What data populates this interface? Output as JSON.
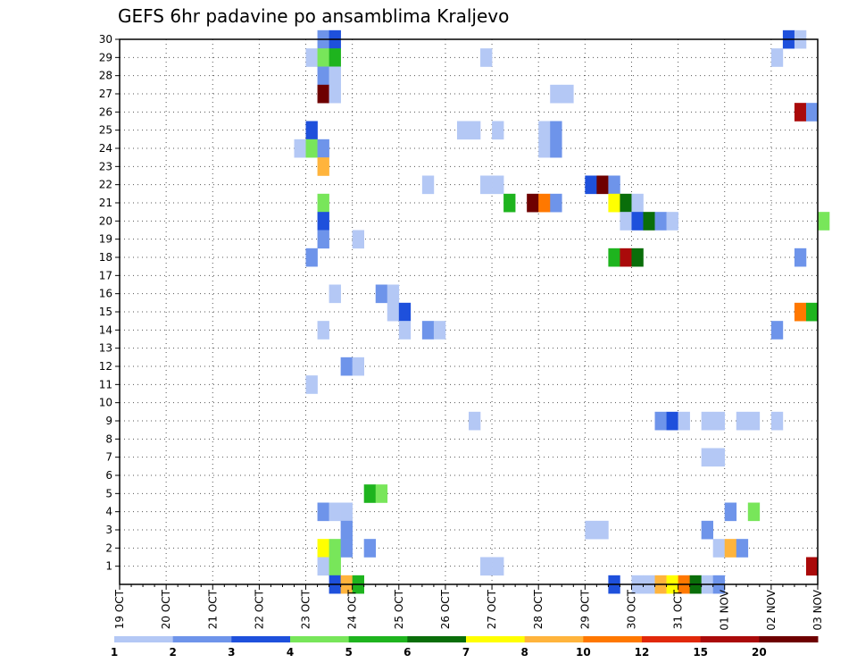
{
  "chart_data": {
    "type": "heatmap",
    "title": "GEFS 6hr padavine po ansamblima Kraljevo",
    "xlabel": "",
    "ylabel": "",
    "x_tick_labels": [
      "19 OCT",
      "20 OCT",
      "21 OCT",
      "22 OCT",
      "23 OCT",
      "24 OCT",
      "25 OCT",
      "26 OCT",
      "27 OCT",
      "28 OCT",
      "29 OCT",
      "30 OCT",
      "31 OCT",
      "01 NOV",
      "02 NOV",
      "03 NOV"
    ],
    "y_tick_labels": [
      "1",
      "2",
      "3",
      "4",
      "5",
      "6",
      "7",
      "8",
      "9",
      "10",
      "11",
      "12",
      "13",
      "14",
      "15",
      "16",
      "17",
      "18",
      "19",
      "20",
      "21",
      "22",
      "23",
      "24",
      "25",
      "26",
      "27",
      "28",
      "29",
      "30"
    ],
    "ylim": [
      0,
      30
    ],
    "time_steps_per_day": 4,
    "grid": true,
    "colorbar": {
      "labels": [
        "1",
        "2",
        "3",
        "4",
        "5",
        "6",
        "7",
        "8",
        "10",
        "12",
        "15",
        "20"
      ],
      "colors": [
        "#b4c8f5",
        "#6e94ea",
        "#1e50dc",
        "#78e65a",
        "#1eb41e",
        "#0a6e0a",
        "#ffff00",
        "#ffb43c",
        "#ff7800",
        "#e1280a",
        "#aa0a0a",
        "#6e0000"
      ]
    },
    "cells": [
      {
        "m": 30,
        "t": 17,
        "c": 1
      },
      {
        "m": 30,
        "t": 18,
        "c": 2
      },
      {
        "m": 30,
        "t": 57,
        "c": 2
      },
      {
        "m": 30,
        "t": 58,
        "c": 0
      },
      {
        "m": 29,
        "t": 16,
        "c": 0
      },
      {
        "m": 29,
        "t": 17,
        "c": 3
      },
      {
        "m": 29,
        "t": 18,
        "c": 4
      },
      {
        "m": 29,
        "t": 31,
        "c": 0
      },
      {
        "m": 29,
        "t": 56,
        "c": 0
      },
      {
        "m": 28,
        "t": 17,
        "c": 1
      },
      {
        "m": 28,
        "t": 18,
        "c": 0
      },
      {
        "m": 27,
        "t": 17,
        "c": 11
      },
      {
        "m": 27,
        "t": 18,
        "c": 0
      },
      {
        "m": 27,
        "t": 37,
        "c": 0
      },
      {
        "m": 27,
        "t": 38,
        "c": 0
      },
      {
        "m": 26,
        "t": 58,
        "c": 10
      },
      {
        "m": 26,
        "t": 59,
        "c": 1
      },
      {
        "m": 25,
        "t": 16,
        "c": 2
      },
      {
        "m": 25,
        "t": 29,
        "c": 0
      },
      {
        "m": 25,
        "t": 30,
        "c": 0
      },
      {
        "m": 25,
        "t": 32,
        "c": 0
      },
      {
        "m": 25,
        "t": 36,
        "c": 0
      },
      {
        "m": 25,
        "t": 37,
        "c": 1
      },
      {
        "m": 24,
        "t": 15,
        "c": 0
      },
      {
        "m": 24,
        "t": 16,
        "c": 3
      },
      {
        "m": 24,
        "t": 17,
        "c": 1
      },
      {
        "m": 24,
        "t": 36,
        "c": 0
      },
      {
        "m": 24,
        "t": 37,
        "c": 1
      },
      {
        "m": 23,
        "t": 17,
        "c": 7
      },
      {
        "m": 22,
        "t": 26,
        "c": 0
      },
      {
        "m": 22,
        "t": 31,
        "c": 0
      },
      {
        "m": 22,
        "t": 32,
        "c": 0
      },
      {
        "m": 22,
        "t": 40,
        "c": 2
      },
      {
        "m": 22,
        "t": 41,
        "c": 11
      },
      {
        "m": 22,
        "t": 42,
        "c": 1
      },
      {
        "m": 21,
        "t": 17,
        "c": 3
      },
      {
        "m": 21,
        "t": 33,
        "c": 4
      },
      {
        "m": 21,
        "t": 35,
        "c": 11
      },
      {
        "m": 21,
        "t": 36,
        "c": 8
      },
      {
        "m": 21,
        "t": 37,
        "c": 1
      },
      {
        "m": 21,
        "t": 42,
        "c": 6
      },
      {
        "m": 21,
        "t": 43,
        "c": 5
      },
      {
        "m": 21,
        "t": 44,
        "c": 0
      },
      {
        "m": 20,
        "t": 17,
        "c": 2
      },
      {
        "m": 20,
        "t": 43,
        "c": 0
      },
      {
        "m": 20,
        "t": 44,
        "c": 2
      },
      {
        "m": 20,
        "t": 45,
        "c": 5
      },
      {
        "m": 20,
        "t": 46,
        "c": 1
      },
      {
        "m": 20,
        "t": 47,
        "c": 0
      },
      {
        "m": 20,
        "t": 60,
        "c": 3
      },
      {
        "m": 19,
        "t": 17,
        "c": 1
      },
      {
        "m": 19,
        "t": 20,
        "c": 0
      },
      {
        "m": 18,
        "t": 16,
        "c": 1
      },
      {
        "m": 18,
        "t": 42,
        "c": 4
      },
      {
        "m": 18,
        "t": 43,
        "c": 10
      },
      {
        "m": 18,
        "t": 44,
        "c": 5
      },
      {
        "m": 18,
        "t": 58,
        "c": 1
      },
      {
        "m": 16,
        "t": 18,
        "c": 0
      },
      {
        "m": 16,
        "t": 22,
        "c": 1
      },
      {
        "m": 16,
        "t": 23,
        "c": 0
      },
      {
        "m": 15,
        "t": 23,
        "c": 0
      },
      {
        "m": 15,
        "t": 24,
        "c": 2
      },
      {
        "m": 15,
        "t": 58,
        "c": 8
      },
      {
        "m": 15,
        "t": 59,
        "c": 4
      },
      {
        "m": 14,
        "t": 17,
        "c": 0
      },
      {
        "m": 14,
        "t": 24,
        "c": 0
      },
      {
        "m": 14,
        "t": 26,
        "c": 1
      },
      {
        "m": 14,
        "t": 27,
        "c": 0
      },
      {
        "m": 14,
        "t": 56,
        "c": 1
      },
      {
        "m": 12,
        "t": 19,
        "c": 1
      },
      {
        "m": 12,
        "t": 20,
        "c": 0
      },
      {
        "m": 11,
        "t": 16,
        "c": 0
      },
      {
        "m": 9,
        "t": 30,
        "c": 0
      },
      {
        "m": 9,
        "t": 46,
        "c": 1
      },
      {
        "m": 9,
        "t": 47,
        "c": 2
      },
      {
        "m": 9,
        "t": 48,
        "c": 0
      },
      {
        "m": 9,
        "t": 50,
        "c": 0
      },
      {
        "m": 9,
        "t": 51,
        "c": 0
      },
      {
        "m": 9,
        "t": 53,
        "c": 0
      },
      {
        "m": 9,
        "t": 54,
        "c": 0
      },
      {
        "m": 9,
        "t": 56,
        "c": 0
      },
      {
        "m": 7,
        "t": 50,
        "c": 0
      },
      {
        "m": 7,
        "t": 51,
        "c": 0
      },
      {
        "m": 5,
        "t": 21,
        "c": 4
      },
      {
        "m": 5,
        "t": 22,
        "c": 3
      },
      {
        "m": 4,
        "t": 17,
        "c": 1
      },
      {
        "m": 4,
        "t": 18,
        "c": 0
      },
      {
        "m": 4,
        "t": 19,
        "c": 0
      },
      {
        "m": 4,
        "t": 52,
        "c": 1
      },
      {
        "m": 4,
        "t": 54,
        "c": 3
      },
      {
        "m": 3,
        "t": 19,
        "c": 1
      },
      {
        "m": 3,
        "t": 40,
        "c": 0
      },
      {
        "m": 3,
        "t": 41,
        "c": 0
      },
      {
        "m": 3,
        "t": 50,
        "c": 1
      },
      {
        "m": 2,
        "t": 17,
        "c": 6
      },
      {
        "m": 2,
        "t": 18,
        "c": 3
      },
      {
        "m": 2,
        "t": 19,
        "c": 1
      },
      {
        "m": 2,
        "t": 21,
        "c": 1
      },
      {
        "m": 2,
        "t": 51,
        "c": 0
      },
      {
        "m": 2,
        "t": 52,
        "c": 7
      },
      {
        "m": 2,
        "t": 53,
        "c": 1
      },
      {
        "m": 1,
        "t": 17,
        "c": 0
      },
      {
        "m": 1,
        "t": 18,
        "c": 3
      },
      {
        "m": 1,
        "t": 31,
        "c": 0
      },
      {
        "m": 1,
        "t": 32,
        "c": 0
      },
      {
        "m": 1,
        "t": 59,
        "c": 10
      },
      {
        "m": 0,
        "t": 18,
        "c": 2
      },
      {
        "m": 0,
        "t": 19,
        "c": 7
      },
      {
        "m": 0,
        "t": 20,
        "c": 4
      },
      {
        "m": 0,
        "t": 42,
        "c": 2
      },
      {
        "m": 0,
        "t": 44,
        "c": 0
      },
      {
        "m": 0,
        "t": 45,
        "c": 0
      },
      {
        "m": 0,
        "t": 46,
        "c": 7
      },
      {
        "m": 0,
        "t": 47,
        "c": 6
      },
      {
        "m": 0,
        "t": 48,
        "c": 8
      },
      {
        "m": 0,
        "t": 49,
        "c": 5
      },
      {
        "m": 0,
        "t": 50,
        "c": 0
      },
      {
        "m": 0,
        "t": 51,
        "c": 1
      }
    ]
  }
}
